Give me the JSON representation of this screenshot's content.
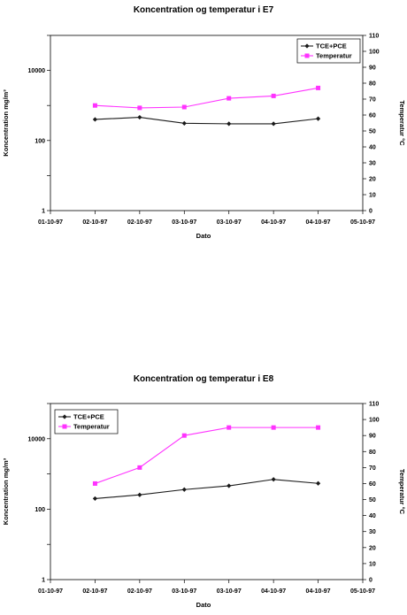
{
  "chart_data": [
    {
      "type": "line",
      "title": "Koncentration og temperatur i E7",
      "xlabel": "Dato",
      "ylabel": "Koncentration mg/m³",
      "y2label": "Temperatur °C",
      "x_tick_labels": [
        "01-10-97",
        "02-10-97",
        "02-10-97",
        "03-10-97",
        "03-10-97",
        "04-10-97",
        "04-10-97",
        "05-10-97"
      ],
      "y_scale": "log",
      "ylim": [
        1,
        100000
      ],
      "y_tick_labels": [
        "1",
        "100",
        "10000"
      ],
      "y2lim": [
        0,
        110
      ],
      "y2_ticks": [
        0,
        10,
        20,
        30,
        40,
        50,
        60,
        70,
        80,
        90,
        100,
        110
      ],
      "legend_position": "top-right",
      "legend": [
        "TCE+PCE",
        "Temperatur"
      ],
      "series": [
        {
          "name": "TCE+PCE",
          "axis": "left",
          "color": "#1a1a1a",
          "marker": "diamond",
          "x": [
            1,
            2,
            3,
            4,
            5,
            6
          ],
          "values": [
            400,
            460,
            310,
            300,
            300,
            420
          ]
        },
        {
          "name": "Temperatur",
          "axis": "right",
          "color": "#ff33ff",
          "marker": "square",
          "x": [
            1,
            2,
            3,
            4,
            5,
            6
          ],
          "values": [
            66,
            64.5,
            65,
            70.5,
            72,
            77
          ]
        }
      ]
    },
    {
      "type": "line",
      "title": "Koncentration og temperatur i E8",
      "xlabel": "Dato",
      "ylabel": "Koncentration mg/m³",
      "y2label": "Temperatur °C",
      "x_tick_labels": [
        "01-10-97",
        "02-10-97",
        "02-10-97",
        "03-10-97",
        "03-10-97",
        "04-10-97",
        "04-10-97",
        "05-10-97"
      ],
      "y_scale": "log",
      "ylim": [
        1,
        100000
      ],
      "y_tick_labels": [
        "1",
        "100",
        "10000"
      ],
      "y2lim": [
        0,
        110
      ],
      "y2_ticks": [
        0,
        10,
        20,
        30,
        40,
        50,
        60,
        70,
        80,
        90,
        100,
        110
      ],
      "legend_position": "top-left",
      "legend": [
        "TCE+PCE",
        "Temperatur"
      ],
      "series": [
        {
          "name": "TCE+PCE",
          "axis": "left",
          "color": "#1a1a1a",
          "marker": "diamond",
          "x": [
            1,
            2,
            3,
            4,
            5,
            6
          ],
          "values": [
            200,
            255,
            360,
            460,
            700,
            540
          ]
        },
        {
          "name": "Temperatur",
          "axis": "right",
          "color": "#ff33ff",
          "marker": "square",
          "x": [
            1,
            2,
            3,
            4,
            5,
            6
          ],
          "values": [
            60,
            70,
            90,
            95,
            95,
            95
          ]
        }
      ]
    }
  ]
}
